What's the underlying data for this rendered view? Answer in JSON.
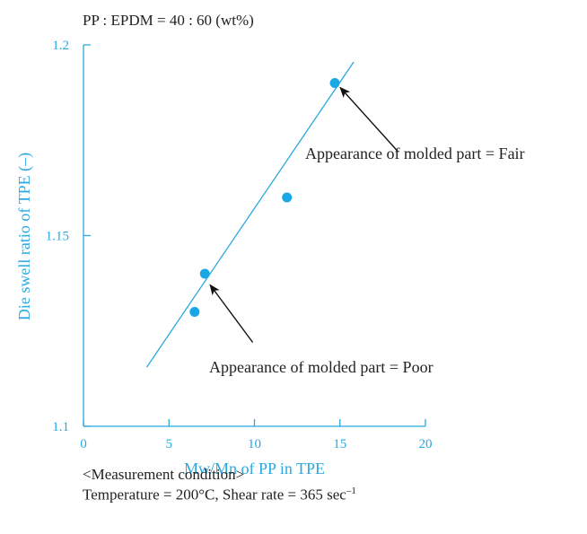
{
  "colors": {
    "axis": "#29a9e0",
    "text": "#222222",
    "point": "#1aa7e6",
    "arrow": "#111111"
  },
  "chart_data": {
    "type": "scatter",
    "title": "PP : EPDM = 40 : 60 (wt%)",
    "xlabel": "Mw/Mn of PP in TPE",
    "ylabel": "Die swell ratio of TPE (–)",
    "xlim": [
      0,
      20
    ],
    "ylim": [
      1.1,
      1.2
    ],
    "xticks": [
      0,
      5,
      10,
      15,
      20
    ],
    "yticks": [
      1.1,
      1.15,
      1.2
    ],
    "xtick_labels": [
      "0",
      "5",
      "10",
      "15",
      "20"
    ],
    "ytick_labels": [
      "1.1",
      "1.15",
      "1.2"
    ],
    "grid": false,
    "legend": "none",
    "points": [
      {
        "x": 6.5,
        "y": 1.13
      },
      {
        "x": 7.1,
        "y": 1.14
      },
      {
        "x": 11.9,
        "y": 1.16
      },
      {
        "x": 14.7,
        "y": 1.19
      }
    ],
    "trendline": {
      "x": [
        3.7,
        15.8
      ],
      "y": [
        1.1155,
        1.1955
      ]
    },
    "annotations": [
      {
        "text": "Appearance of molded part = Fair",
        "target": {
          "x": 14.7,
          "y": 1.19
        },
        "tail": {
          "x": 18.4,
          "y": 1.172
        }
      },
      {
        "text": "Appearance of molded part = Poor",
        "target": {
          "x": 7.3,
          "y": 1.1385
        },
        "tail": {
          "x": 9.9,
          "y": 1.122
        }
      }
    ]
  },
  "notes": {
    "condition_title": "<Measurement condition>",
    "condition_text": "Temperature = 200°C, Shear rate = 365 sec",
    "condition_exp": "–1"
  }
}
